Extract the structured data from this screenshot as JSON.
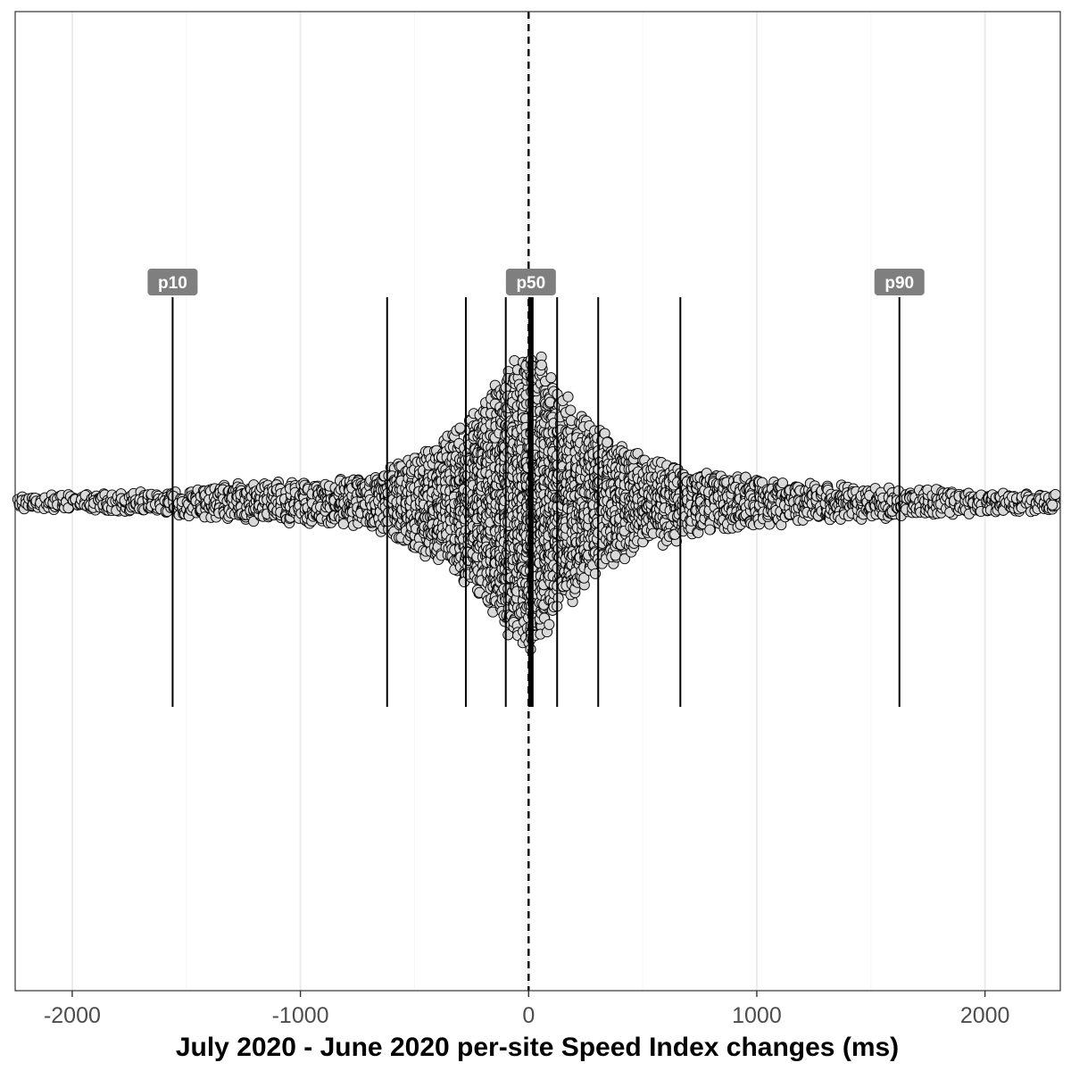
{
  "chart_data": {
    "type": "scatter",
    "subtype": "beeswarm",
    "title": "",
    "xlabel": "July 2020 - June 2020 per-site Speed Index changes (ms)",
    "ylabel": "",
    "xlim": [
      -2250,
      2330
    ],
    "x_ticks": [
      -2000,
      -1000,
      0,
      1000,
      2000
    ],
    "x_tick_labels": [
      "-2000",
      "-1000",
      "0",
      "1000",
      "2000"
    ],
    "grid": "vertical-major",
    "reference_line": {
      "x": 0,
      "style": "dashed"
    },
    "percentile_lines": [
      {
        "percentile": 10,
        "x": -1560,
        "label": "p10"
      },
      {
        "percentile": 20,
        "x": -620,
        "label": ""
      },
      {
        "percentile": 30,
        "x": -275,
        "label": ""
      },
      {
        "percentile": 40,
        "x": -100,
        "label": ""
      },
      {
        "percentile": 50,
        "x": 10,
        "label": "p50"
      },
      {
        "percentile": 60,
        "x": 125,
        "label": ""
      },
      {
        "percentile": 70,
        "x": 305,
        "label": ""
      },
      {
        "percentile": 80,
        "x": 665,
        "label": ""
      },
      {
        "percentile": 90,
        "x": 1625,
        "label": "p90"
      }
    ],
    "density_profile": {
      "x": [
        -2250,
        -2000,
        -1800,
        -1560,
        -1300,
        -1100,
        -900,
        -750,
        -620,
        -500,
        -400,
        -275,
        -200,
        -100,
        -50,
        0,
        10,
        50,
        125,
        200,
        305,
        400,
        500,
        665,
        800,
        1000,
        1300,
        1625,
        1900,
        2330
      ],
      "half_width": [
        8,
        10,
        11,
        15,
        22,
        24,
        26,
        30,
        40,
        58,
        70,
        95,
        120,
        150,
        165,
        175,
        178,
        165,
        140,
        110,
        85,
        70,
        55,
        42,
        35,
        28,
        22,
        17,
        14,
        10
      ]
    },
    "point_fill": "#d9d9d9",
    "point_stroke": "#000000",
    "label_fill": "#7f7f7f"
  }
}
